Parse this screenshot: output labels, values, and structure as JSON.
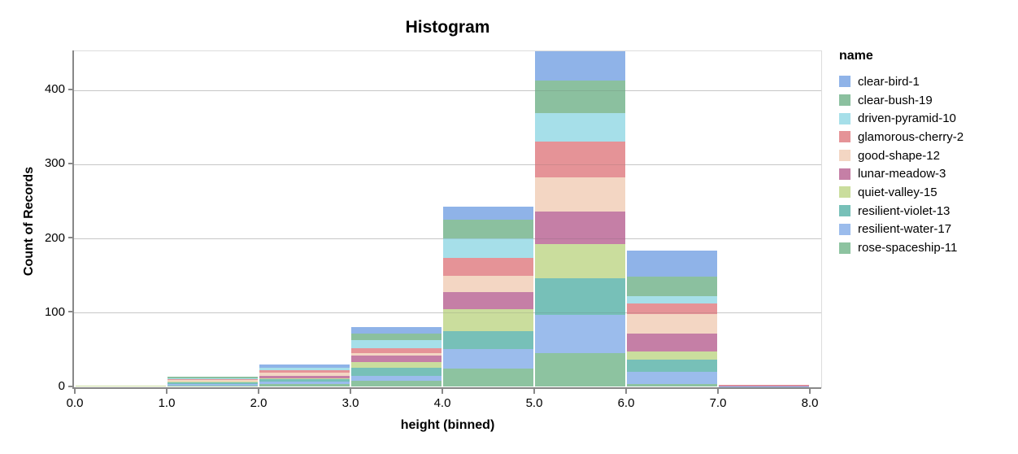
{
  "chart_data": {
    "type": "bar",
    "subtype": "stacked-histogram",
    "title": "Histogram",
    "xlabel": "height (binned)",
    "ylabel": "Count of Records",
    "legend_title": "name",
    "x_tick_labels": [
      "0.0",
      "1.0",
      "2.0",
      "3.0",
      "4.0",
      "5.0",
      "6.0",
      "7.0",
      "8.0"
    ],
    "y_tick_labels": [
      "0",
      "100",
      "200",
      "300",
      "400"
    ],
    "y_tick_values": [
      0,
      100,
      200,
      300,
      400
    ],
    "x_domain": [
      0,
      8.125
    ],
    "y_domain": [
      0,
      452
    ],
    "grid": true,
    "legend_position": "right",
    "stack_note": "series are stacked bottom-to-top in reverse legend order (first legend item on top)",
    "bin_edges": [
      0,
      1,
      2,
      3,
      4,
      5,
      6,
      7,
      8
    ],
    "bin_totals": [
      2,
      14,
      30,
      81,
      243,
      452,
      184,
      3
    ],
    "series": [
      {
        "name": "clear-bird-1",
        "color": "#8fb3e8",
        "values": [
          0,
          0,
          4,
          9,
          18,
          39,
          36,
          0
        ]
      },
      {
        "name": "clear-bush-19",
        "color": "#8bc09f",
        "values": [
          0,
          2,
          0,
          9,
          25,
          44,
          26,
          0
        ]
      },
      {
        "name": "driven-pyramid-10",
        "color": "#a6dfe9",
        "values": [
          0,
          1,
          4,
          11,
          26,
          39,
          10,
          0
        ]
      },
      {
        "name": "glamorous-cherry-2",
        "color": "#e59397",
        "values": [
          0,
          2,
          3,
          6,
          24,
          48,
          14,
          1
        ]
      },
      {
        "name": "good-shape-12",
        "color": "#f3d6c3",
        "values": [
          0,
          2,
          4,
          4,
          22,
          46,
          26,
          0
        ]
      },
      {
        "name": "lunar-meadow-3",
        "color": "#c57fa6",
        "values": [
          0,
          0,
          3,
          9,
          23,
          44,
          24,
          1
        ]
      },
      {
        "name": "quiet-valley-15",
        "color": "#cadd9d",
        "values": [
          2,
          1,
          2,
          7,
          30,
          46,
          11,
          0
        ]
      },
      {
        "name": "resilient-violet-13",
        "color": "#77c0b8",
        "values": [
          0,
          2,
          3,
          11,
          24,
          49,
          17,
          0
        ]
      },
      {
        "name": "resilient-water-17",
        "color": "#9bbcec",
        "values": [
          0,
          2,
          3,
          7,
          26,
          52,
          16,
          1
        ]
      },
      {
        "name": "rose-spaceship-11",
        "color": "#8dc3a0",
        "values": [
          0,
          2,
          4,
          8,
          25,
          45,
          4,
          0
        ]
      }
    ],
    "colors": {
      "axis": "#888888",
      "grid": "#dddddd",
      "text": "#000000",
      "background": "#ffffff"
    }
  }
}
